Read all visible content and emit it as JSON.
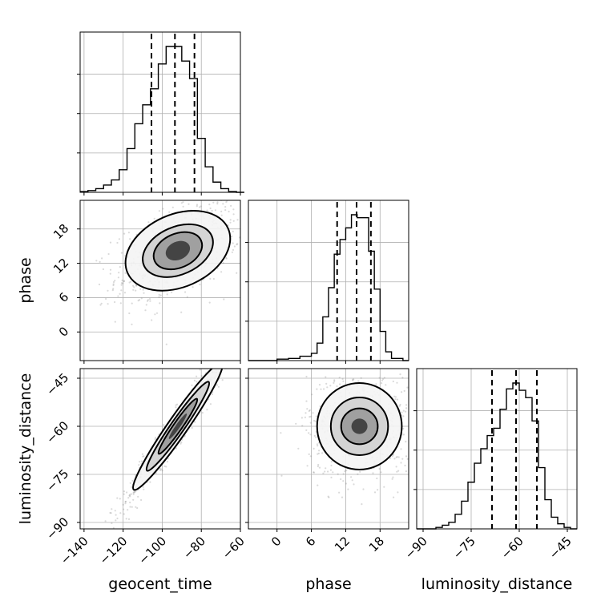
{
  "chart_data": {
    "type": "corner",
    "title": "",
    "parameters": [
      {
        "name": "geocent_time",
        "label": "geocent_time",
        "range": [
          -142,
          -60
        ],
        "ticks": [
          -140,
          -120,
          -100,
          -80,
          -60
        ],
        "tick_labels": [
          "−140",
          "−120",
          "−100",
          "−80",
          "−60"
        ],
        "quantiles": [
          -105.5,
          -93.5,
          -83.5
        ],
        "histogram": {
          "bin_edges": [
            -142,
            -138,
            -134,
            -130,
            -126,
            -122,
            -118,
            -114,
            -110,
            -106,
            -102,
            -98,
            -94,
            -90,
            -86,
            -82,
            -78,
            -74,
            -70,
            -66,
            -62,
            -58
          ],
          "counts": [
            0.005,
            0.012,
            0.025,
            0.05,
            0.085,
            0.155,
            0.3,
            0.47,
            0.6,
            0.71,
            0.88,
            1.0,
            1.0,
            0.9,
            0.78,
            0.37,
            0.175,
            0.07,
            0.025,
            0.005,
            0.0
          ]
        }
      },
      {
        "name": "phase",
        "label": "phase",
        "range": [
          -5,
          23
        ],
        "ticks": [
          0,
          6,
          12,
          18
        ],
        "tick_labels": [
          "0",
          "6",
          "12",
          "18"
        ],
        "quantiles": [
          10.5,
          13.9,
          16.4
        ],
        "histogram": {
          "bin_edges": [
            -5,
            0,
            2,
            4,
            6,
            7,
            8,
            9,
            10,
            11,
            12,
            13,
            14,
            16,
            17,
            18,
            19,
            20,
            22,
            23
          ],
          "counts": [
            0.0,
            0.01,
            0.015,
            0.03,
            0.05,
            0.12,
            0.3,
            0.5,
            0.73,
            0.83,
            0.91,
            1.0,
            0.98,
            0.75,
            0.49,
            0.2,
            0.06,
            0.015,
            0.0
          ]
        }
      },
      {
        "name": "luminosity_distance",
        "label": "luminosity_distance",
        "range": [
          -92,
          -42
        ],
        "ticks": [
          -90,
          -75,
          -60,
          -45
        ],
        "tick_labels": [
          "−90",
          "−75",
          "−60",
          "−45"
        ],
        "quantiles": [
          -68.5,
          -61,
          -54.5
        ],
        "histogram": {
          "bin_edges": [
            -92,
            -86,
            -84,
            -82,
            -80,
            -78,
            -76,
            -74,
            -72,
            -70,
            -68,
            -66,
            -64,
            -62,
            -60,
            -58,
            -56,
            -54,
            -52,
            -50,
            -48,
            -46,
            -44,
            -42
          ],
          "counts": [
            0.0,
            0.01,
            0.025,
            0.045,
            0.1,
            0.19,
            0.32,
            0.45,
            0.55,
            0.64,
            0.69,
            0.82,
            0.96,
            1.0,
            0.95,
            0.9,
            0.74,
            0.42,
            0.2,
            0.08,
            0.035,
            0.01,
            0.0
          ]
        }
      }
    ],
    "pairs": [
      {
        "x_param": "geocent_time",
        "y_param": "phase",
        "center": [
          -92,
          14.2
        ],
        "contours": [
          {
            "rx": 26,
            "ry": 6.4,
            "rot": 0.15
          },
          {
            "rx": 17.5,
            "ry": 4.2,
            "rot": 0.15
          },
          {
            "rx": 12,
            "ry": 3.0,
            "rot": 0.15
          },
          {
            "rx": 6,
            "ry": 1.6,
            "rot": 0.15
          }
        ]
      },
      {
        "x_param": "geocent_time",
        "y_param": "luminosity_distance",
        "center": [
          -92,
          -60
        ],
        "contours": [
          {
            "rx": 30,
            "ry": 3.6,
            "rot": 0.72
          },
          {
            "rx": 21,
            "ry": 2.5,
            "rot": 0.72
          },
          {
            "rx": 13,
            "ry": 1.6,
            "rot": 0.72
          },
          {
            "rx": 6,
            "ry": 0.8,
            "rot": 0.72
          }
        ]
      },
      {
        "x_param": "phase",
        "y_param": "luminosity_distance",
        "center": [
          14.4,
          -60
        ],
        "contours": [
          {
            "rx": 7.4,
            "ry": 13.5,
            "rot": 0.0
          },
          {
            "rx": 5.0,
            "ry": 9.0,
            "rot": 0.0
          },
          {
            "rx": 3.2,
            "ry": 5.6,
            "rot": 0.0
          },
          {
            "rx": 1.4,
            "ry": 2.4,
            "rot": 0.0
          }
        ]
      }
    ],
    "grid": true,
    "scatter_points_per_panel": 700
  }
}
